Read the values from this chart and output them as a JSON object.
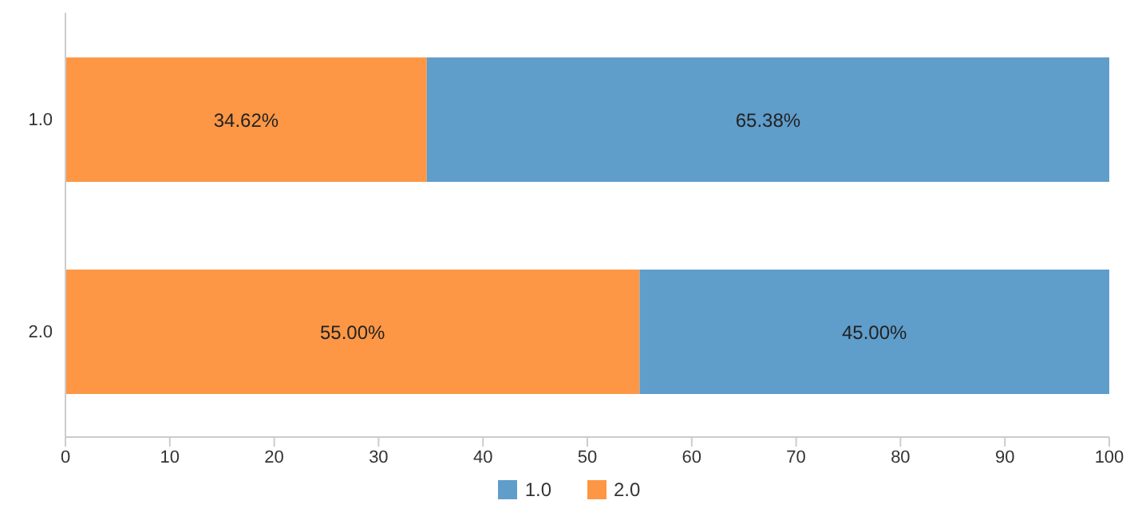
{
  "chart_data": {
    "type": "bar",
    "orientation": "horizontal",
    "stacked": true,
    "categories": [
      "1.0",
      "2.0"
    ],
    "series": [
      {
        "name": "2.0",
        "color": "#fd9745",
        "values": [
          34.62,
          55.0
        ],
        "value_labels": [
          "34.62%",
          "55.00%"
        ]
      },
      {
        "name": "1.0",
        "color": "#5f9dcb",
        "values": [
          65.38,
          45.0
        ],
        "value_labels": [
          "65.38%",
          "45.00%"
        ]
      }
    ],
    "xlim": [
      0,
      100
    ],
    "xticks": [
      0,
      10,
      20,
      30,
      40,
      50,
      60,
      70,
      80,
      90,
      100
    ],
    "grid": false,
    "legend": "bottom"
  }
}
